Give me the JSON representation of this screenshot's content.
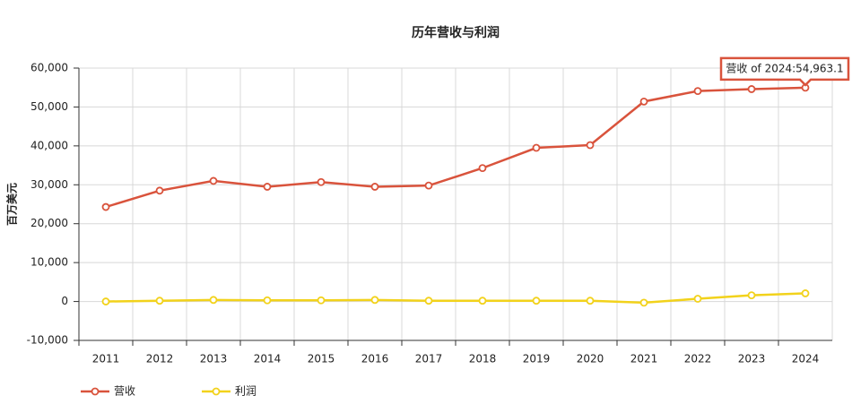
{
  "chart_data": {
    "type": "line",
    "title": "历年营收与利润",
    "ylabel": "百万美元",
    "categories": [
      "2011",
      "2012",
      "2013",
      "2014",
      "2015",
      "2016",
      "2017",
      "2018",
      "2019",
      "2020",
      "2021",
      "2022",
      "2023",
      "2024"
    ],
    "series": [
      {
        "name": "营收",
        "color": "#d9533c",
        "values": [
          24300,
          28500,
          31000,
          29500,
          30700,
          29500,
          29800,
          34300,
          39500,
          40200,
          51400,
          54100,
          54600,
          54963.1
        ]
      },
      {
        "name": "利润",
        "color": "#f2d21b",
        "values": [
          0,
          200,
          400,
          300,
          300,
          400,
          200,
          200,
          200,
          200,
          -300,
          700,
          1600,
          2100
        ]
      }
    ],
    "ylim": [
      -10000,
      60000
    ],
    "yticks": [
      {
        "value": -10000,
        "label": "-10,000"
      },
      0,
      {
        "value": 10000,
        "label": "10,000"
      },
      {
        "value": 20000,
        "label": "20,000"
      },
      {
        "value": 30000,
        "label": "30,000"
      },
      {
        "value": 40000,
        "label": "40,000"
      },
      {
        "value": 50000,
        "label": "50,000"
      },
      {
        "value": 60000,
        "label": "60,000"
      }
    ],
    "grid": true,
    "legend": "bottom-left",
    "annotation": "营收 of 2024:54,963.1"
  }
}
